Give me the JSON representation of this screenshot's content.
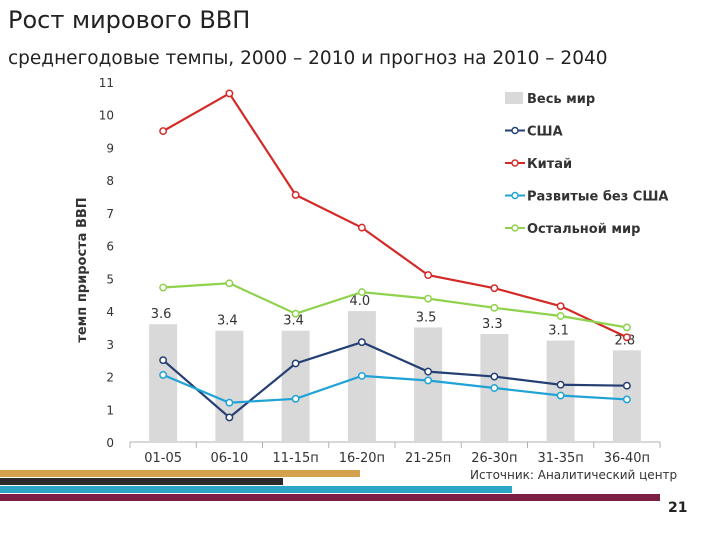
{
  "header": {
    "title": "Рост мирового ВВП",
    "subtitle": "среднегодовые темпы, 2000 – 2010 и прогноз на 2010 – 2040"
  },
  "footer": {
    "source": "Источник: Аналитический центр",
    "page_number": "21"
  },
  "chart_data": {
    "type": "bar",
    "title": "",
    "xlabel": "",
    "ylabel": "темп прироста ВВП",
    "ylim": [
      0,
      11
    ],
    "yticks": [
      "0",
      "1",
      "2",
      "3",
      "4",
      "5",
      "6",
      "7",
      "8",
      "9",
      "10",
      "11"
    ],
    "grid": false,
    "legend": "right",
    "categories": [
      "01-05",
      "06-10",
      "11-15п",
      "16-20п",
      "21-25п",
      "26-30п",
      "31-35п",
      "36-40п"
    ],
    "bar_series": {
      "name": "Весь мир",
      "values": [
        3.6,
        3.4,
        3.4,
        4.0,
        3.5,
        3.3,
        3.1,
        2.8
      ],
      "labels": [
        "3.6",
        "3.4",
        "3.4",
        "4.0",
        "3.5",
        "3.3",
        "3.1",
        "2.8"
      ],
      "color": "#d9d9d9"
    },
    "line_series": [
      {
        "name": "США",
        "values": [
          2.5,
          0.75,
          2.4,
          3.05,
          2.15,
          2.0,
          1.75,
          1.72
        ],
        "color": "#243f73"
      },
      {
        "name": "Китай",
        "values": [
          9.5,
          10.65,
          7.55,
          6.55,
          5.1,
          4.7,
          4.15,
          3.2
        ],
        "color": "#d42a27"
      },
      {
        "name": "Развитые без США",
        "values": [
          2.05,
          1.2,
          1.32,
          2.02,
          1.88,
          1.65,
          1.42,
          1.3
        ],
        "color": "#1fa3d6"
      },
      {
        "name": "Остальной мир",
        "values": [
          4.72,
          4.85,
          3.92,
          4.58,
          4.38,
          4.1,
          3.85,
          3.5
        ],
        "color": "#8fd24d"
      }
    ]
  },
  "decor": {
    "strip_colors": [
      "#d4a24c",
      "#2b2b2b",
      "#2ba6c4",
      "#7b1f45"
    ]
  }
}
